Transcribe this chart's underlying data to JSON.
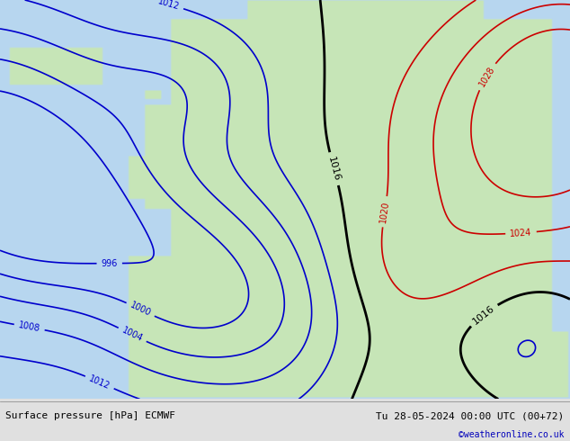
{
  "title_left": "Surface pressure [hPa] ECMWF",
  "title_right": "Tu 28-05-2024 00:00 UTC (00+72)",
  "watermark": "©weatheronline.co.uk",
  "font_size_labels": 7,
  "font_size_bottom": 8,
  "contour_color_low": "#0000cc",
  "contour_color_high": "#cc0000",
  "contour_color_1016": "#000000"
}
